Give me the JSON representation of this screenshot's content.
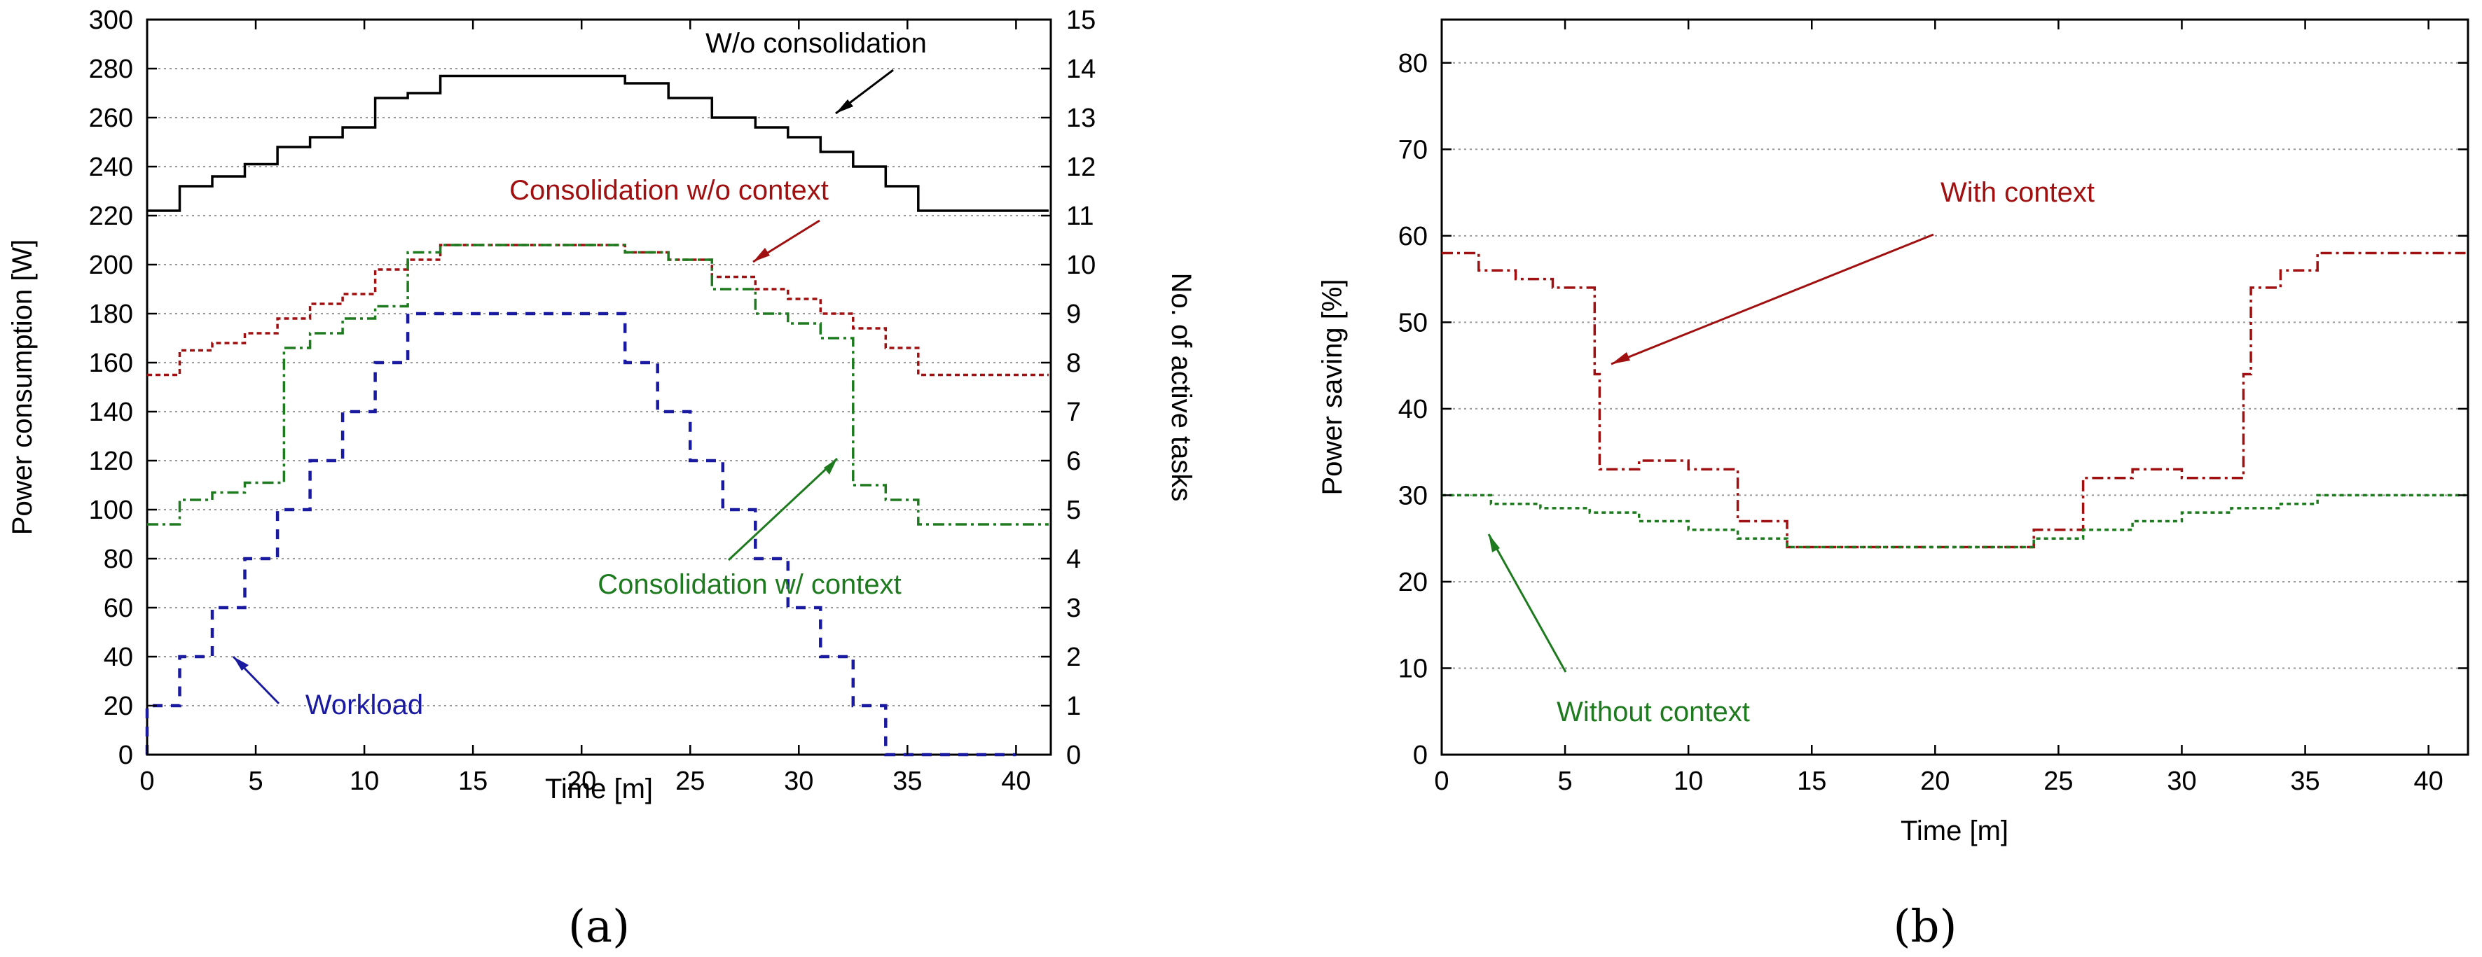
{
  "chart_data": [
    {
      "type": "line",
      "panel_label": "(a)",
      "xlabel": "Time [m]",
      "ylabel": "Power consumption [W]",
      "y2label": "No. of active tasks",
      "xlim": [
        0,
        41.6
      ],
      "ylim": [
        0,
        300
      ],
      "y2lim": [
        0,
        15
      ],
      "xticks": [
        "0",
        "5",
        "10",
        "15",
        "20",
        "25",
        "30",
        "35",
        "40"
      ],
      "yticks": [
        "0",
        "20",
        "40",
        "60",
        "80",
        "100",
        "120",
        "140",
        "160",
        "180",
        "200",
        "220",
        "240",
        "260",
        "280",
        "300"
      ],
      "y2ticks": [
        "0",
        "1",
        "2",
        "3",
        "4",
        "5",
        "6",
        "7",
        "8",
        "9",
        "10",
        "11",
        "12",
        "13",
        "14",
        "15"
      ],
      "grid": "horizontal dotted",
      "colors": {
        "wo_consolidation": "#000000",
        "cons_wo_context": "#a01010",
        "cons_w_context": "#1e7a1e",
        "workload": "#1a1aa0"
      },
      "series": [
        {
          "name": "W/o consolidation",
          "axis": "left",
          "x": [
            0,
            1.5,
            1.5,
            3,
            3,
            4.5,
            4.5,
            6,
            6,
            7.5,
            7.5,
            9,
            9,
            10.5,
            10.5,
            12,
            12,
            13.5,
            13.5,
            22,
            22,
            24,
            24,
            26,
            26,
            28,
            28,
            29.5,
            29.5,
            31,
            31,
            32.5,
            32.5,
            34,
            34,
            35.5,
            35.5,
            41.5
          ],
          "values": [
            222,
            222,
            232,
            232,
            236,
            236,
            241,
            241,
            248,
            248,
            252,
            252,
            256,
            256,
            268,
            268,
            270,
            270,
            277,
            277,
            274,
            274,
            268,
            268,
            260,
            260,
            256,
            256,
            252,
            252,
            246,
            246,
            240,
            240,
            232,
            232,
            222,
            222
          ]
        },
        {
          "name": "Consolidation w/o context",
          "axis": "left",
          "x": [
            0,
            1.5,
            1.5,
            3,
            3,
            4.5,
            4.5,
            6,
            6,
            7.5,
            7.5,
            9,
            9,
            10.5,
            10.5,
            12,
            12,
            13.5,
            13.5,
            22,
            22,
            24,
            24,
            26,
            26,
            28,
            28,
            29.5,
            29.5,
            31,
            31,
            32.5,
            32.5,
            34,
            34,
            35.5,
            35.5,
            41.5
          ],
          "values": [
            155,
            155,
            165,
            165,
            168,
            168,
            172,
            172,
            178,
            178,
            184,
            184,
            188,
            188,
            198,
            198,
            202,
            202,
            208,
            208,
            205,
            205,
            202,
            202,
            195,
            195,
            190,
            190,
            186,
            186,
            180,
            180,
            174,
            174,
            166,
            166,
            155,
            155
          ]
        },
        {
          "name": "Consolidation w/ context",
          "axis": "left",
          "x": [
            0,
            1.5,
            1.5,
            3,
            3,
            4.5,
            4.5,
            6.3,
            6.3,
            7.5,
            7.5,
            9,
            9,
            10.5,
            10.5,
            12,
            12,
            13.5,
            13.5,
            22,
            22,
            24,
            24,
            26,
            26,
            28,
            28,
            29.5,
            29.5,
            31,
            31,
            32.5,
            32.5,
            34,
            34,
            35.5,
            35.5,
            41.5
          ],
          "values": [
            94,
            94,
            104,
            104,
            107,
            107,
            111,
            111,
            166,
            166,
            172,
            172,
            178,
            178,
            183,
            183,
            205,
            205,
            208,
            208,
            205,
            205,
            202,
            202,
            190,
            190,
            180,
            180,
            176,
            176,
            170,
            170,
            110,
            110,
            104,
            104,
            94,
            94
          ]
        },
        {
          "name": "Workload",
          "axis": "right",
          "x": [
            0,
            0,
            1.5,
            1.5,
            3,
            3,
            4.5,
            4.5,
            6,
            6,
            7.5,
            7.5,
            9,
            9,
            10.5,
            10.5,
            12,
            12,
            22,
            22,
            23.5,
            23.5,
            25,
            25,
            26.5,
            26.5,
            28,
            28,
            29.5,
            29.5,
            31,
            31,
            32.5,
            32.5,
            34,
            34,
            40
          ],
          "values": [
            0,
            1,
            1,
            2,
            2,
            3,
            3,
            4,
            4,
            5,
            5,
            6,
            6,
            7,
            7,
            8,
            8,
            9,
            9,
            8,
            8,
            7,
            7,
            6,
            6,
            5,
            5,
            4,
            4,
            3,
            3,
            2,
            2,
            1,
            1,
            0,
            0
          ]
        }
      ],
      "annotations": [
        "W/o consolidation",
        "Consolidation w/o context",
        "Consolidation w/ context",
        "Workload"
      ]
    },
    {
      "type": "line",
      "panel_label": "(b)",
      "xlabel": "Time [m]",
      "ylabel": "Power saving [%]",
      "xlim": [
        0,
        41.6
      ],
      "ylim": [
        0,
        85
      ],
      "xticks": [
        "0",
        "5",
        "10",
        "15",
        "20",
        "25",
        "30",
        "35",
        "40"
      ],
      "yticks": [
        "0",
        "10",
        "20",
        "30",
        "40",
        "50",
        "60",
        "70",
        "80"
      ],
      "grid": "horizontal dotted",
      "colors": {
        "with_context": "#a01010",
        "without_context": "#1e7a1e"
      },
      "series": [
        {
          "name": "With context",
          "x": [
            0,
            1.5,
            1.5,
            3,
            3,
            4.5,
            4.5,
            6.2,
            6.2,
            6.4,
            6.4,
            8,
            8,
            10,
            10,
            12,
            12,
            14,
            14,
            24,
            24,
            26,
            26,
            28,
            28,
            30,
            30,
            32.5,
            32.5,
            32.8,
            32.8,
            34,
            34,
            35.5,
            35.5,
            41.5
          ],
          "values": [
            58,
            58,
            56,
            56,
            55,
            55,
            54,
            54,
            44,
            44,
            33,
            33,
            34,
            34,
            33,
            33,
            27,
            27,
            24,
            24,
            26,
            26,
            32,
            32,
            33,
            33,
            32,
            32,
            44,
            44,
            54,
            54,
            56,
            56,
            58,
            58
          ]
        },
        {
          "name": "Without context",
          "x": [
            0,
            2,
            2,
            4,
            4,
            6,
            6,
            8,
            8,
            10,
            10,
            12,
            12,
            14,
            14,
            24,
            24,
            26,
            26,
            28,
            28,
            30,
            30,
            32,
            32,
            34,
            34,
            35.5,
            35.5,
            41.5
          ],
          "values": [
            30,
            30,
            29,
            29,
            28.5,
            28.5,
            28,
            28,
            27,
            27,
            26,
            26,
            25,
            25,
            24,
            24,
            25,
            25,
            26,
            26,
            27,
            27,
            28,
            28,
            28.5,
            28.5,
            29,
            29,
            30,
            30
          ]
        }
      ],
      "annotations": [
        "With context",
        "Without context"
      ]
    }
  ]
}
